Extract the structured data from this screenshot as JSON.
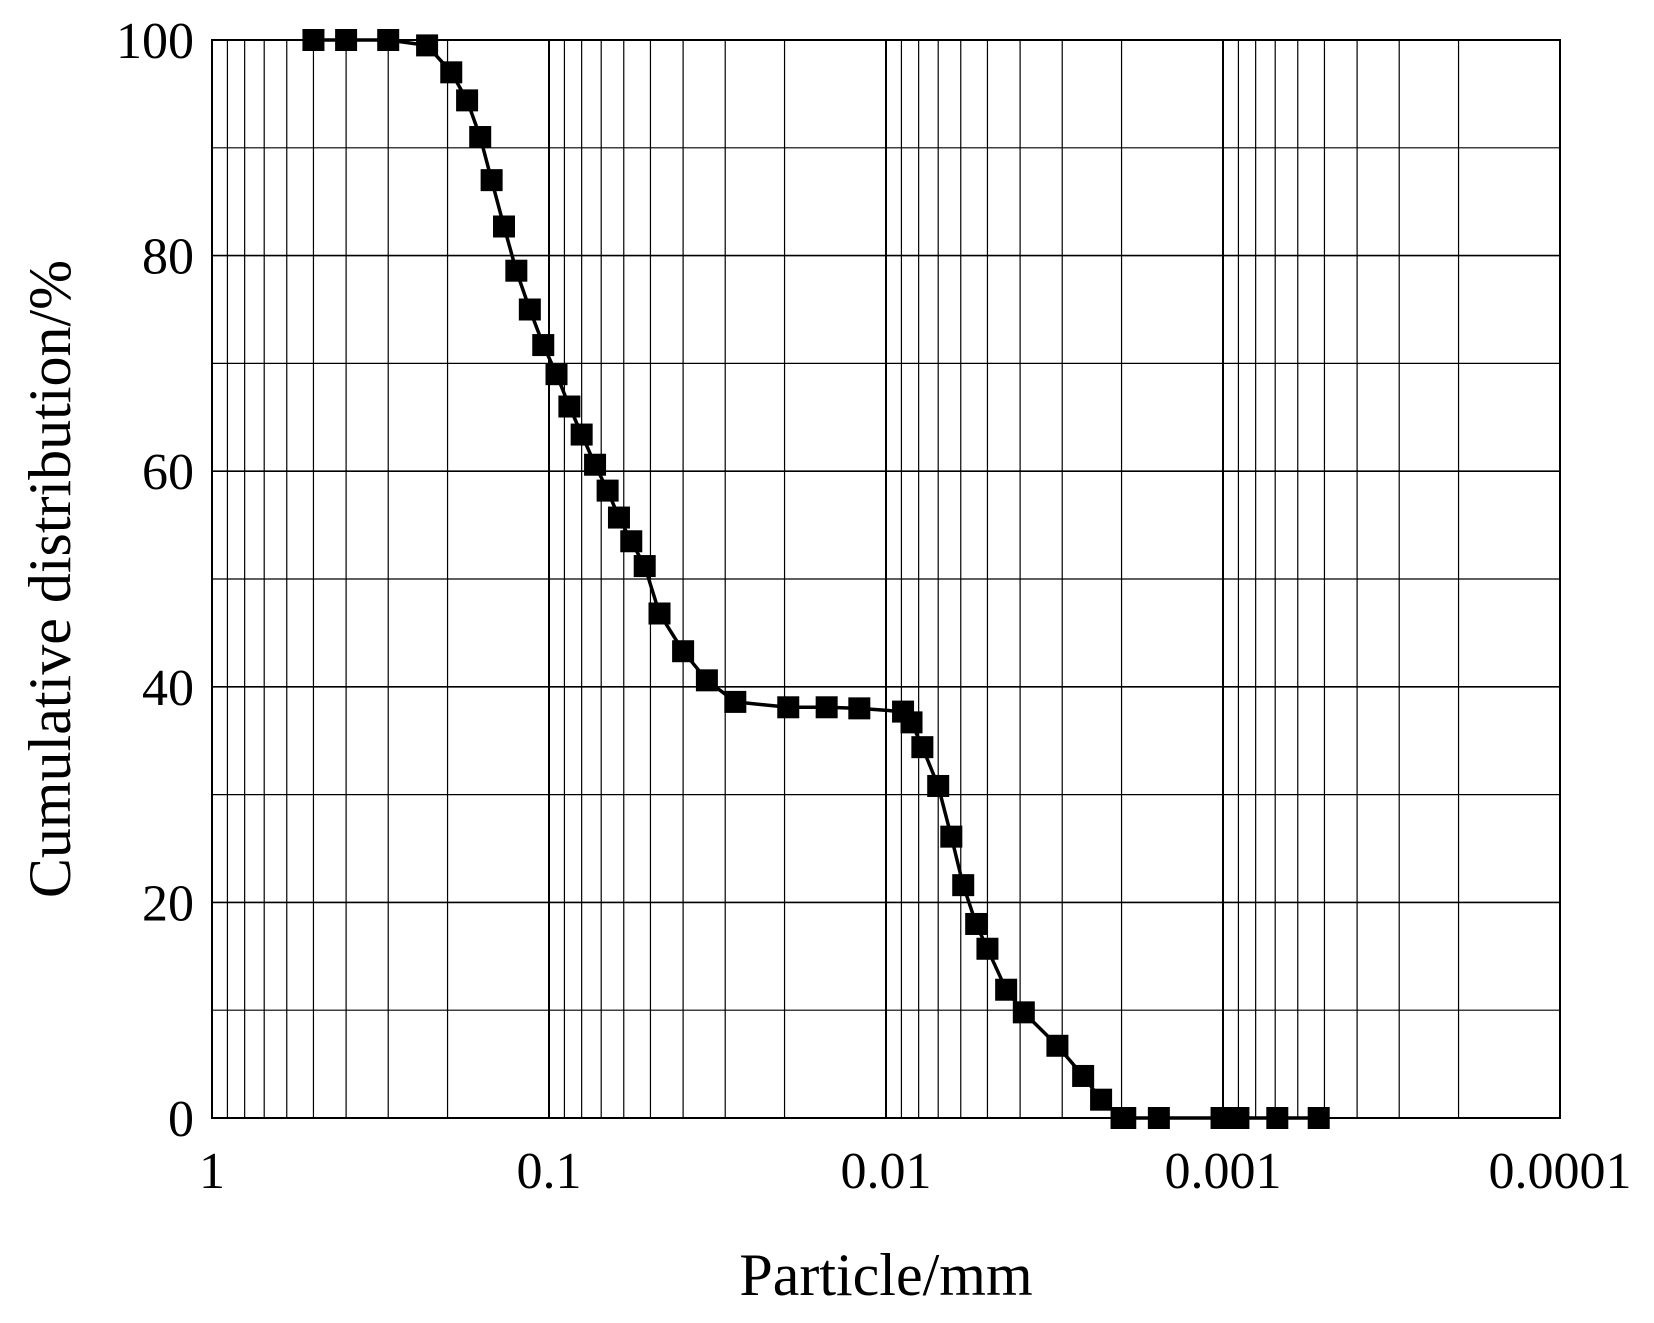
{
  "chart_data": {
    "type": "line",
    "title": "",
    "xlabel": "Particle/mm",
    "ylabel": "Cumulative distribution/%",
    "x_scale": "log",
    "x_reversed": true,
    "xlim": [
      1,
      0.0001
    ],
    "ylim": [
      0,
      100
    ],
    "x_ticks": [
      "1",
      "0.1",
      "0.01",
      "0.001",
      "0.0001"
    ],
    "y_ticks": [
      "0",
      "20",
      "40",
      "60",
      "80",
      "100"
    ],
    "grid": true,
    "legend": "none",
    "marker": "square",
    "line_color": "#000000",
    "series": [
      {
        "x": [
          0.5,
          0.4,
          0.3,
          0.23,
          0.195,
          0.175,
          0.16,
          0.148,
          0.136,
          0.125,
          0.114,
          0.104,
          0.095,
          0.087,
          0.08,
          0.073,
          0.067,
          0.062,
          0.057,
          0.052,
          0.047,
          0.04,
          0.034,
          0.028,
          0.0195,
          0.015,
          0.012,
          0.0089,
          0.0084,
          0.0078,
          0.007,
          0.0064,
          0.0059,
          0.0054,
          0.005,
          0.0044,
          0.0039,
          0.0031,
          0.0026,
          0.0023,
          0.002,
          0.00195,
          0.00155,
          0.00101,
          0.0009,
          0.00069,
          0.00052
        ],
        "values": [
          100,
          100,
          100,
          99.5,
          97,
          94.4,
          91,
          87,
          82.7,
          78.6,
          75,
          71.7,
          69,
          66,
          63.4,
          60.6,
          58.2,
          55.7,
          53.5,
          51.2,
          46.8,
          43.3,
          40.6,
          38.6,
          38.1,
          38.1,
          38,
          37.7,
          36.7,
          34.4,
          30.8,
          26.1,
          21.6,
          18,
          15.7,
          11.9,
          9.8,
          6.7,
          3.9,
          1.7,
          0,
          0,
          0,
          0,
          0,
          0,
          0
        ]
      }
    ]
  }
}
